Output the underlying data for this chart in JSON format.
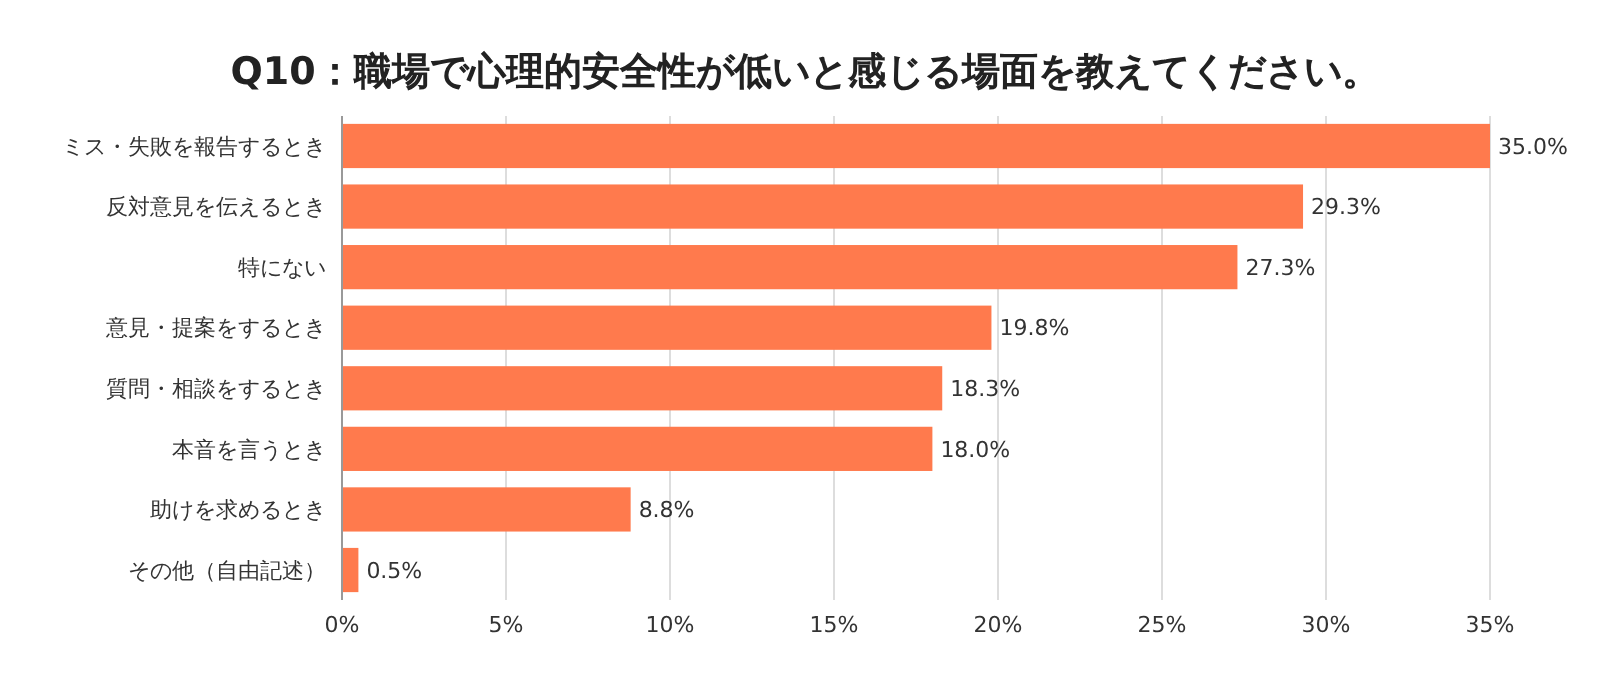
{
  "chart_data": {
    "type": "bar",
    "orientation": "horizontal",
    "title": "Q10：職場で心理的安全性が低いと感じる場面を教えてください。",
    "categories": [
      "ミス・失敗を報告するとき",
      "反対意見を伝えるとき",
      "特にない",
      "意見・提案をするとき",
      "質問・相談をするとき",
      "本音を言うとき",
      "助けを求めるとき",
      "その他（自由記述）"
    ],
    "values": [
      35.0,
      29.3,
      27.3,
      19.8,
      18.3,
      18.0,
      8.8,
      0.5
    ],
    "value_labels": [
      "35.0%",
      "29.3%",
      "27.3%",
      "19.8%",
      "18.3%",
      "18.0%",
      "8.8%",
      "0.5%"
    ],
    "color": "#ff7a4d",
    "xlim": [
      0,
      35
    ],
    "xticks": [
      {
        "value": 0,
        "label": "0%"
      },
      {
        "value": 5,
        "label": "5%"
      },
      {
        "value": 10,
        "label": "10%"
      },
      {
        "value": 15,
        "label": "15%"
      },
      {
        "value": 20,
        "label": "20%"
      },
      {
        "value": 25,
        "label": "25%"
      },
      {
        "value": 30,
        "label": "30%"
      },
      {
        "value": 35,
        "label": "35%"
      }
    ],
    "grid": "x"
  }
}
